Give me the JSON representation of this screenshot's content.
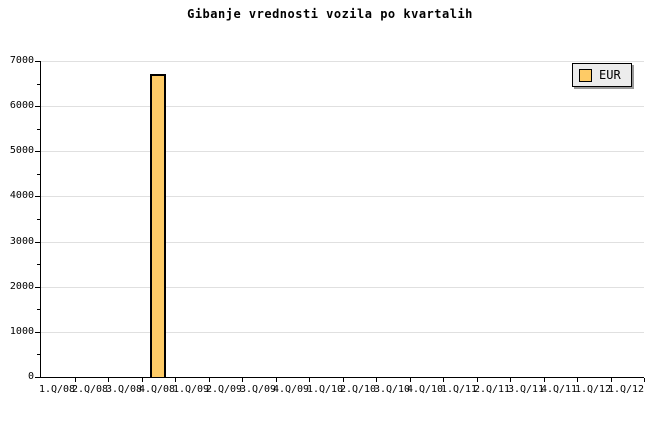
{
  "chart_data": {
    "type": "bar",
    "title": "Gibanje vrednosti vozila po kvartalih",
    "categories": [
      "1.Q/08",
      "2.Q/08",
      "3.Q/08",
      "4.Q/08",
      "1.Q/09",
      "2.Q/09",
      "3.Q/09",
      "4.Q/09",
      "1.Q/10",
      "2.Q/10",
      "3.Q/10",
      "4.Q/10",
      "1.Q/11",
      "2.Q/11",
      "3.Q/11",
      "4.Q/11",
      "1.Q/12",
      "1.Q/12"
    ],
    "series": [
      {
        "name": "EUR",
        "values": [
          0,
          0,
          0,
          6720,
          0,
          0,
          0,
          0,
          0,
          0,
          0,
          0,
          0,
          0,
          0,
          0,
          0,
          0
        ]
      }
    ],
    "xlabel": "",
    "ylabel": "",
    "ylim": [
      0,
      7000
    ],
    "y_tick_step": 1000,
    "y_minor_tick_step": 500,
    "y_tick_labels": [
      "0",
      "1000",
      "2000",
      "3000",
      "4000",
      "5000",
      "6000",
      "7000"
    ],
    "grid": true,
    "legend": {
      "position": "top-right",
      "entries": [
        "EUR"
      ]
    },
    "colors": {
      "background": "#FFFFFF",
      "text": "#000000",
      "axis": "#000000",
      "gridline": "#E0E0E0",
      "bar_fill": "#FECB66",
      "bar_border": "#000000",
      "legend_bg": "#ECECEC",
      "legend_border": "#000000",
      "legend_shadow": "#999999"
    }
  }
}
